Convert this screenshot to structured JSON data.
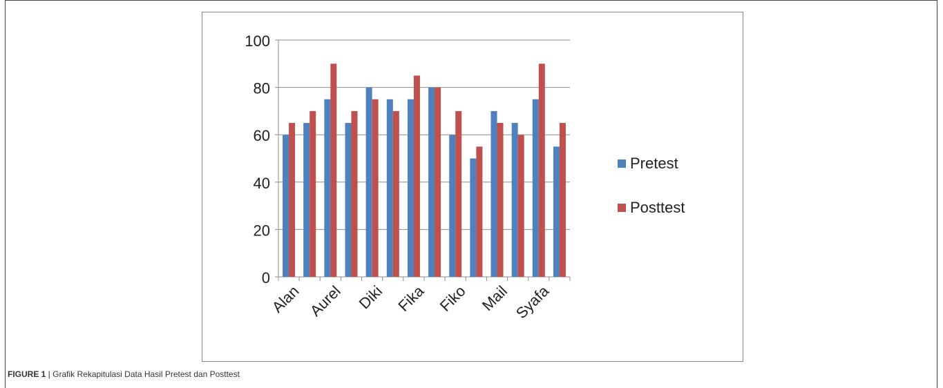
{
  "caption": {
    "label": "FIGURE 1",
    "separator": " | ",
    "text": "Grafik Rekapitulasi Data Hasil Pretest dan Posttest"
  },
  "chart_data": {
    "type": "bar",
    "x_tick_labels": [
      "Alan",
      "Aurel",
      "Diki",
      "Fika",
      "Fiko",
      "Mail",
      "Syafa"
    ],
    "series": [
      {
        "name": "Pretest",
        "color": "#4f81bd",
        "values": [
          60,
          65,
          75,
          65,
          80,
          75,
          75,
          80,
          60,
          50,
          70,
          65,
          75,
          55
        ]
      },
      {
        "name": "Posttest",
        "color": "#c0504d",
        "values": [
          65,
          70,
          90,
          70,
          75,
          70,
          85,
          80,
          70,
          55,
          65,
          60,
          90,
          65
        ]
      }
    ],
    "ylim": [
      0,
      100
    ],
    "y_ticks": [
      0,
      20,
      40,
      60,
      80,
      100
    ],
    "grid": true,
    "legend_position": "right"
  }
}
